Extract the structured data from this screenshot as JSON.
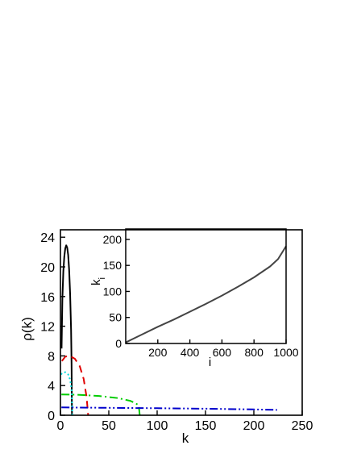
{
  "chart_data": [
    {
      "type": "line",
      "title": "",
      "xlabel": "k",
      "ylabel": "ρ(k)",
      "xlim": [
        0,
        250
      ],
      "ylim": [
        0,
        25
      ],
      "xticks": [
        0,
        50,
        100,
        150,
        200,
        250
      ],
      "yticks": [
        0,
        4,
        8,
        12,
        16,
        20,
        24
      ],
      "grid": false,
      "series": [
        {
          "color": "#000000",
          "style": "solid",
          "x": [
            1.2,
            2,
            3,
            4,
            5,
            6,
            7,
            8,
            9,
            10,
            11,
            11.5,
            11.9
          ],
          "y": [
            9,
            15.7,
            19.4,
            21.4,
            22.5,
            22.9,
            22.6,
            21.6,
            19.6,
            16.4,
            11.5,
            7,
            0
          ]
        },
        {
          "color": "#e00000",
          "style": "dashed",
          "x": [
            1.5,
            5,
            10,
            15,
            20,
            24,
            27,
            28.7
          ],
          "y": [
            7.3,
            7.9,
            8.0,
            7.6,
            6.6,
            4.9,
            2.5,
            0
          ]
        },
        {
          "color": "#00dddd",
          "style": "dotted",
          "x": [
            0.5,
            2,
            5,
            8,
            10,
            11.5,
            12.3
          ],
          "y": [
            5.5,
            5.7,
            5.8,
            5.5,
            4.8,
            3.5,
            0
          ]
        },
        {
          "color": "#00cc00",
          "style": "dash-dot",
          "x": [
            1,
            20,
            40,
            60,
            72,
            78,
            81,
            82
          ],
          "y": [
            2.8,
            2.75,
            2.6,
            2.3,
            1.95,
            1.6,
            1.3,
            0
          ]
        },
        {
          "color": "#0000cc",
          "style": "dash-dot-dot",
          "x": [
            1,
            50,
            100,
            150,
            200,
            224
          ],
          "y": [
            1.05,
            1.0,
            0.95,
            0.88,
            0.78,
            0.72
          ]
        }
      ]
    },
    {
      "type": "line",
      "title": "",
      "xlabel": "i",
      "ylabel": "k_i",
      "xlim": [
        0,
        1000
      ],
      "ylim": [
        0,
        220
      ],
      "xticks": [
        200,
        400,
        600,
        800,
        1000
      ],
      "yticks": [
        0,
        50,
        100,
        150,
        200
      ],
      "grid": false,
      "series": [
        {
          "color": "#444444",
          "style": "solid",
          "x": [
            0,
            100,
            200,
            300,
            400,
            500,
            600,
            700,
            800,
            900,
            950,
            1000
          ],
          "y": [
            2,
            17,
            32,
            46,
            61,
            76,
            92,
            109,
            127,
            148,
            162,
            187
          ]
        }
      ]
    }
  ]
}
